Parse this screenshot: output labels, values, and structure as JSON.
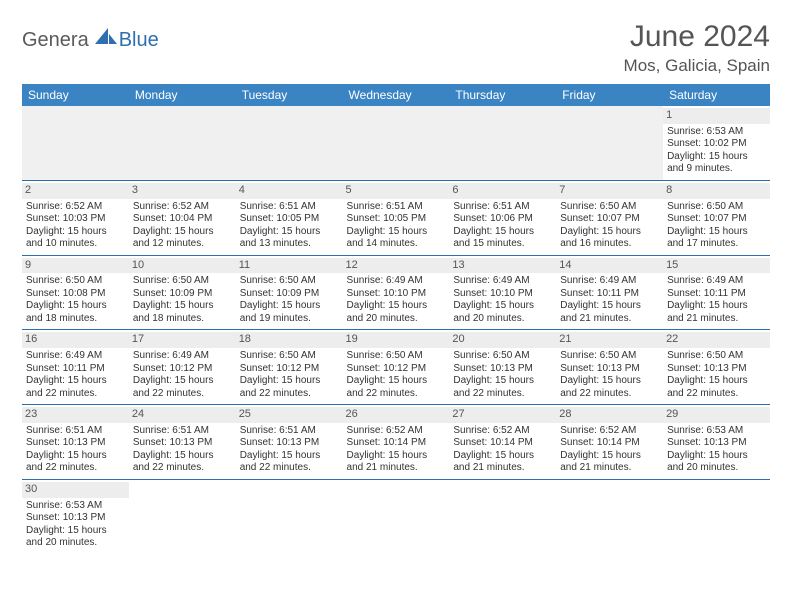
{
  "logo": {
    "part1": "Genera",
    "part2": "Blue",
    "sail_color": "#2f6fb0",
    "text_color": "#5a5a5a"
  },
  "title": "June 2024",
  "location": "Mos, Galicia, Spain",
  "colors": {
    "header_bg": "#3b84c4",
    "header_text": "#ffffff",
    "daynum_bg": "#ededed",
    "cell_border": "#2f6fb0",
    "body_text": "#333333"
  },
  "typography": {
    "title_fontsize": 30,
    "location_fontsize": 17,
    "dayhead_fontsize": 12,
    "cell_fontsize": 10
  },
  "day_headers": [
    "Sunday",
    "Monday",
    "Tuesday",
    "Wednesday",
    "Thursday",
    "Friday",
    "Saturday"
  ],
  "weeks": [
    [
      null,
      null,
      null,
      null,
      null,
      null,
      {
        "n": "1",
        "sunrise": "6:53 AM",
        "sunset": "10:02 PM",
        "daylight": "15 hours and 9 minutes."
      }
    ],
    [
      {
        "n": "2",
        "sunrise": "6:52 AM",
        "sunset": "10:03 PM",
        "daylight": "15 hours and 10 minutes."
      },
      {
        "n": "3",
        "sunrise": "6:52 AM",
        "sunset": "10:04 PM",
        "daylight": "15 hours and 12 minutes."
      },
      {
        "n": "4",
        "sunrise": "6:51 AM",
        "sunset": "10:05 PM",
        "daylight": "15 hours and 13 minutes."
      },
      {
        "n": "5",
        "sunrise": "6:51 AM",
        "sunset": "10:05 PM",
        "daylight": "15 hours and 14 minutes."
      },
      {
        "n": "6",
        "sunrise": "6:51 AM",
        "sunset": "10:06 PM",
        "daylight": "15 hours and 15 minutes."
      },
      {
        "n": "7",
        "sunrise": "6:50 AM",
        "sunset": "10:07 PM",
        "daylight": "15 hours and 16 minutes."
      },
      {
        "n": "8",
        "sunrise": "6:50 AM",
        "sunset": "10:07 PM",
        "daylight": "15 hours and 17 minutes."
      }
    ],
    [
      {
        "n": "9",
        "sunrise": "6:50 AM",
        "sunset": "10:08 PM",
        "daylight": "15 hours and 18 minutes."
      },
      {
        "n": "10",
        "sunrise": "6:50 AM",
        "sunset": "10:09 PM",
        "daylight": "15 hours and 18 minutes."
      },
      {
        "n": "11",
        "sunrise": "6:50 AM",
        "sunset": "10:09 PM",
        "daylight": "15 hours and 19 minutes."
      },
      {
        "n": "12",
        "sunrise": "6:49 AM",
        "sunset": "10:10 PM",
        "daylight": "15 hours and 20 minutes."
      },
      {
        "n": "13",
        "sunrise": "6:49 AM",
        "sunset": "10:10 PM",
        "daylight": "15 hours and 20 minutes."
      },
      {
        "n": "14",
        "sunrise": "6:49 AM",
        "sunset": "10:11 PM",
        "daylight": "15 hours and 21 minutes."
      },
      {
        "n": "15",
        "sunrise": "6:49 AM",
        "sunset": "10:11 PM",
        "daylight": "15 hours and 21 minutes."
      }
    ],
    [
      {
        "n": "16",
        "sunrise": "6:49 AM",
        "sunset": "10:11 PM",
        "daylight": "15 hours and 22 minutes."
      },
      {
        "n": "17",
        "sunrise": "6:49 AM",
        "sunset": "10:12 PM",
        "daylight": "15 hours and 22 minutes."
      },
      {
        "n": "18",
        "sunrise": "6:50 AM",
        "sunset": "10:12 PM",
        "daylight": "15 hours and 22 minutes."
      },
      {
        "n": "19",
        "sunrise": "6:50 AM",
        "sunset": "10:12 PM",
        "daylight": "15 hours and 22 minutes."
      },
      {
        "n": "20",
        "sunrise": "6:50 AM",
        "sunset": "10:13 PM",
        "daylight": "15 hours and 22 minutes."
      },
      {
        "n": "21",
        "sunrise": "6:50 AM",
        "sunset": "10:13 PM",
        "daylight": "15 hours and 22 minutes."
      },
      {
        "n": "22",
        "sunrise": "6:50 AM",
        "sunset": "10:13 PM",
        "daylight": "15 hours and 22 minutes."
      }
    ],
    [
      {
        "n": "23",
        "sunrise": "6:51 AM",
        "sunset": "10:13 PM",
        "daylight": "15 hours and 22 minutes."
      },
      {
        "n": "24",
        "sunrise": "6:51 AM",
        "sunset": "10:13 PM",
        "daylight": "15 hours and 22 minutes."
      },
      {
        "n": "25",
        "sunrise": "6:51 AM",
        "sunset": "10:13 PM",
        "daylight": "15 hours and 22 minutes."
      },
      {
        "n": "26",
        "sunrise": "6:52 AM",
        "sunset": "10:14 PM",
        "daylight": "15 hours and 21 minutes."
      },
      {
        "n": "27",
        "sunrise": "6:52 AM",
        "sunset": "10:14 PM",
        "daylight": "15 hours and 21 minutes."
      },
      {
        "n": "28",
        "sunrise": "6:52 AM",
        "sunset": "10:14 PM",
        "daylight": "15 hours and 21 minutes."
      },
      {
        "n": "29",
        "sunrise": "6:53 AM",
        "sunset": "10:13 PM",
        "daylight": "15 hours and 20 minutes."
      }
    ],
    [
      {
        "n": "30",
        "sunrise": "6:53 AM",
        "sunset": "10:13 PM",
        "daylight": "15 hours and 20 minutes."
      },
      null,
      null,
      null,
      null,
      null,
      null
    ]
  ]
}
